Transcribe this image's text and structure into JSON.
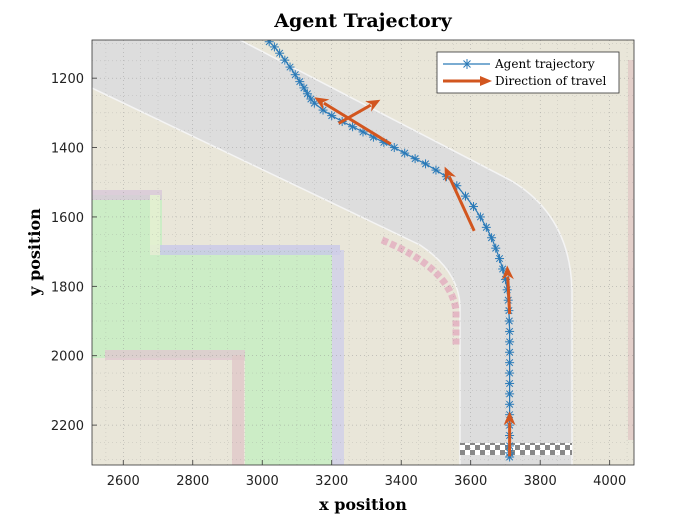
{
  "chart_data": {
    "type": "scatter",
    "title": "Agent Trajectory",
    "xlabel": "x position",
    "ylabel": "y position",
    "xlim": [
      2510,
      4070
    ],
    "ylim": [
      1090,
      2315
    ],
    "y_reversed": true,
    "grid": true,
    "legend_placement": "top-right",
    "x_ticks": [
      "2600",
      "2800",
      "3000",
      "3200",
      "3400",
      "3600",
      "3800",
      "4000"
    ],
    "y_ticks": [
      "1200",
      "1400",
      "1600",
      "1800",
      "2000",
      "2200"
    ],
    "colors": {
      "trajectory": "#2a7ab8",
      "arrow": "#d2561f",
      "road": "#dddddd",
      "ground": "#e9e6d9",
      "grass": "#ccedc6"
    },
    "series": [
      {
        "name": "Agent trajectory",
        "x": [
          3020,
          3035,
          3050,
          3065,
          3080,
          3095,
          3108,
          3120,
          3130,
          3140,
          3150,
          3175,
          3200,
          3230,
          3260,
          3290,
          3320,
          3350,
          3380,
          3410,
          3440,
          3470,
          3500,
          3530,
          3560,
          3585,
          3608,
          3628,
          3645,
          3660,
          3672,
          3683,
          3692,
          3700,
          3705,
          3708,
          3710,
          3711,
          3712,
          3712,
          3712,
          3712,
          3712,
          3712,
          3712,
          3712,
          3712,
          3712,
          3712,
          3712,
          3712,
          3712
        ],
        "y": [
          1095,
          1110,
          1128,
          1148,
          1168,
          1190,
          1210,
          1228,
          1245,
          1260,
          1272,
          1292,
          1308,
          1325,
          1340,
          1355,
          1370,
          1385,
          1400,
          1416,
          1432,
          1447,
          1465,
          1484,
          1510,
          1540,
          1570,
          1600,
          1630,
          1660,
          1690,
          1720,
          1750,
          1780,
          1810,
          1840,
          1870,
          1900,
          1930,
          1960,
          1990,
          2020,
          2050,
          2080,
          2110,
          2140,
          2170,
          2200,
          2230,
          2260,
          2280,
          2292
        ]
      }
    ],
    "arrows": {
      "name": "Direction of travel",
      "segments": [
        {
          "from": [
            3712,
            2290
          ],
          "to": [
            3712,
            2160
          ]
        },
        {
          "from": [
            3712,
            1880
          ],
          "to": [
            3705,
            1740
          ]
        },
        {
          "from": [
            3610,
            1640
          ],
          "to": [
            3525,
            1455
          ]
        },
        {
          "from": [
            3370,
            1390
          ],
          "to": [
            3150,
            1255
          ]
        },
        {
          "from": [
            3220,
            1330
          ],
          "to": [
            3340,
            1262
          ]
        }
      ]
    }
  }
}
